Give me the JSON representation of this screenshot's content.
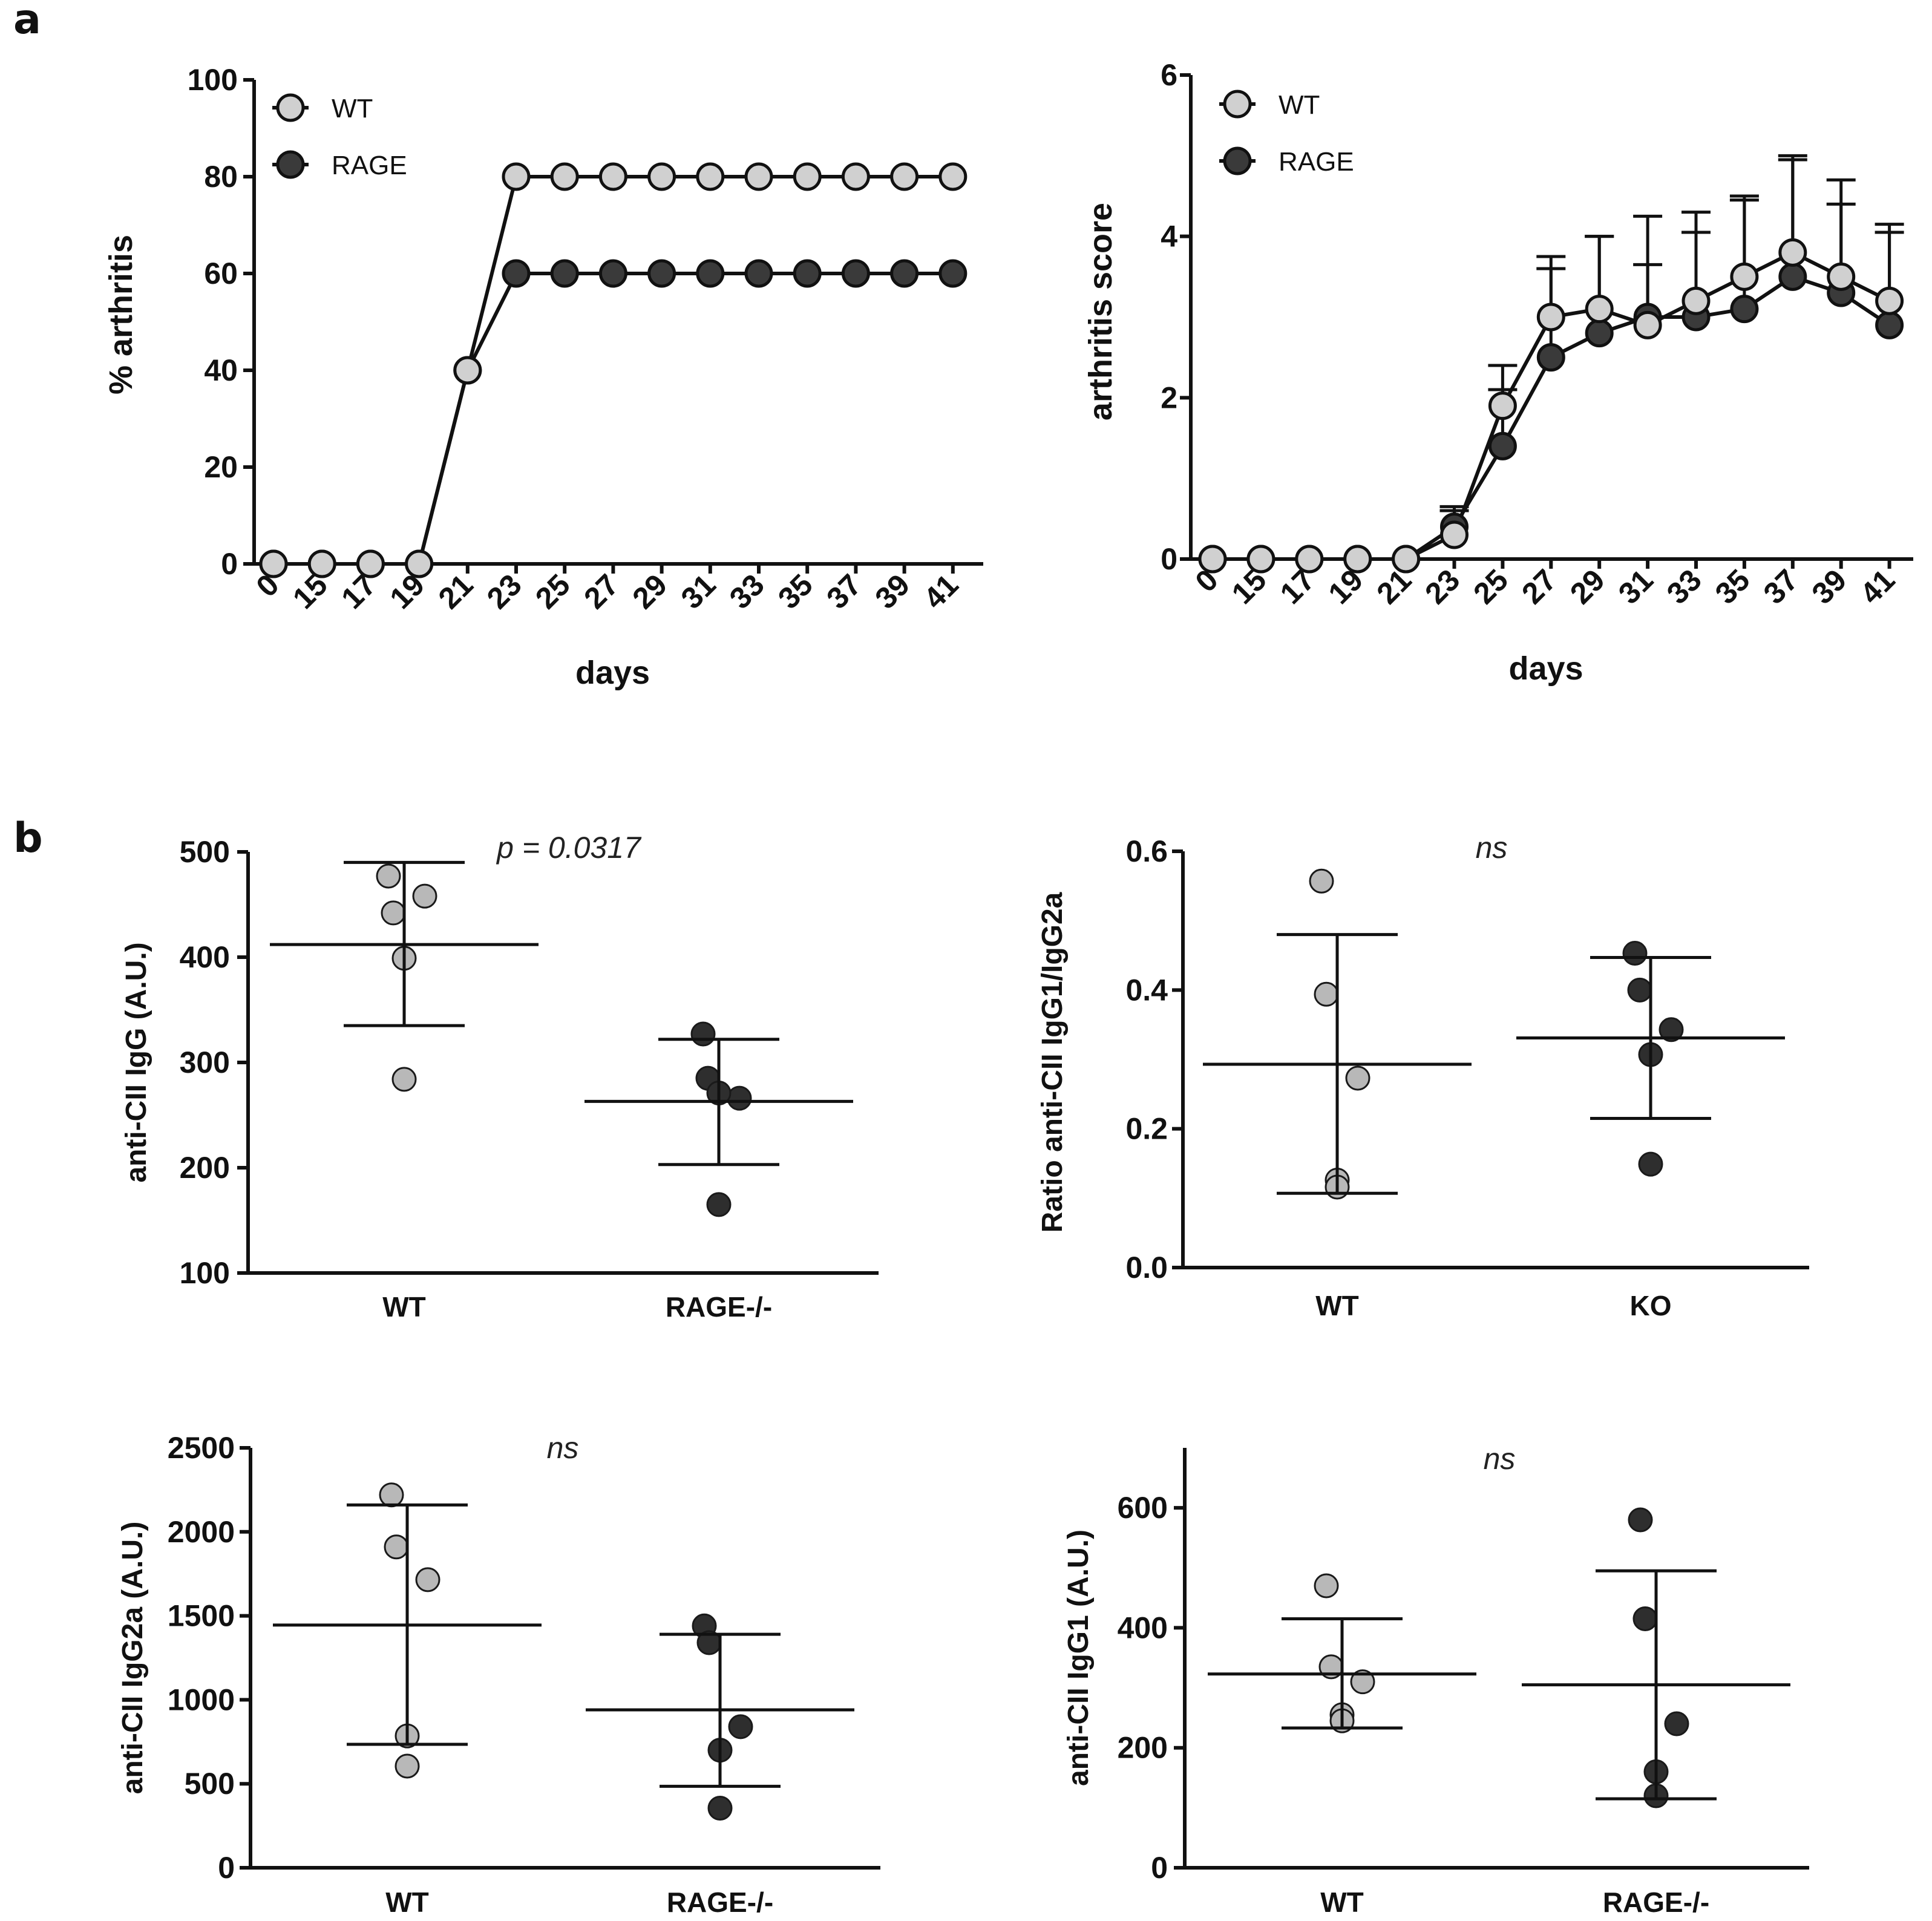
{
  "panels": {
    "a": "a",
    "b": "b"
  },
  "colors": {
    "wt": "#d0d0d0",
    "rage": "#3a3a3a",
    "line": "#111111"
  },
  "chart_data": [
    {
      "type": "line",
      "panel": "a",
      "xlabel": "days",
      "ylabel": "% arthritis",
      "x": [
        "0",
        "15",
        "17",
        "19",
        "21",
        "23",
        "25",
        "27",
        "29",
        "31",
        "33",
        "35",
        "37",
        "39",
        "41"
      ],
      "ylim": [
        0,
        100
      ],
      "yticks": [
        "0",
        "20",
        "40",
        "60",
        "80",
        "100"
      ],
      "legend": "top-left",
      "series": [
        {
          "name": "WT",
          "values": [
            0,
            0,
            0,
            0,
            40,
            80,
            80,
            80,
            80,
            80,
            80,
            80,
            80,
            80,
            80
          ]
        },
        {
          "name": "RAGE",
          "values": [
            0,
            0,
            0,
            0,
            40,
            60,
            60,
            60,
            60,
            60,
            60,
            60,
            60,
            60,
            60
          ]
        }
      ]
    },
    {
      "type": "line",
      "panel": "a",
      "xlabel": "days",
      "ylabel": "arthritis score",
      "x": [
        "0",
        "15",
        "17",
        "19",
        "21",
        "23",
        "25",
        "27",
        "29",
        "31",
        "33",
        "35",
        "37",
        "39",
        "41"
      ],
      "ylim": [
        0,
        6
      ],
      "yticks": [
        "0",
        "2",
        "4",
        "6"
      ],
      "legend": "top-left",
      "series": [
        {
          "name": "WT",
          "values": [
            0,
            0,
            0,
            0,
            0,
            0.3,
            1.9,
            3.0,
            3.1,
            2.9,
            3.2,
            3.5,
            3.8,
            3.5,
            3.2
          ],
          "error": [
            0,
            0,
            0,
            0,
            0,
            0.35,
            0.5,
            0.75,
            0.9,
            1.35,
            1.1,
            1.0,
            1.2,
            1.2,
            0.95
          ]
        },
        {
          "name": "RAGE",
          "values": [
            0,
            0,
            0,
            0,
            0,
            0.4,
            1.4,
            2.5,
            2.8,
            3.0,
            3.0,
            3.1,
            3.5,
            3.3,
            2.9
          ],
          "error": [
            0,
            0,
            0,
            0,
            0,
            0.2,
            0.7,
            1.1,
            1.2,
            0.65,
            1.05,
            1.35,
            1.45,
            1.1,
            1.15
          ]
        }
      ]
    },
    {
      "type": "scatter",
      "panel": "b",
      "ylabel": "anti-CII IgG (A.U.)",
      "categories": [
        "WT",
        "RAGE-/-"
      ],
      "ylim": [
        100,
        500
      ],
      "yticks": [
        "100",
        "200",
        "300",
        "400",
        "500"
      ],
      "annotation": "p = 0.0317",
      "groups": [
        {
          "points": [
            477,
            442,
            458,
            399,
            284
          ],
          "mean": 412,
          "sd_low": 335,
          "sd_high": 490
        },
        {
          "points": [
            327,
            285,
            266,
            271,
            165
          ],
          "mean": 263,
          "sd_low": 203,
          "sd_high": 322
        }
      ]
    },
    {
      "type": "scatter",
      "panel": "b",
      "ylabel": "Ratio anti-CII IgG1/IgG2a",
      "categories": [
        "WT",
        "KO"
      ],
      "ylim": [
        0,
        0.6
      ],
      "yticks": [
        "0.0",
        "0.2",
        "0.4",
        "0.6"
      ],
      "annotation": "ns",
      "groups": [
        {
          "points": [
            0.557,
            0.394,
            0.273,
            0.126,
            0.116
          ],
          "mean": 0.293,
          "sd_low": 0.107,
          "sd_high": 0.48
        },
        {
          "points": [
            0.453,
            0.4,
            0.343,
            0.307,
            0.149
          ],
          "mean": 0.331,
          "sd_low": 0.215,
          "sd_high": 0.447
        }
      ]
    },
    {
      "type": "scatter",
      "panel": "b",
      "ylabel": "anti-CII IgG2a (A.U.)",
      "categories": [
        "WT",
        "RAGE-/-"
      ],
      "ylim": [
        0,
        2500
      ],
      "yticks": [
        "0",
        "500",
        "1000",
        "1500",
        "2000",
        "2500"
      ],
      "annotation": "ns",
      "groups": [
        {
          "points": [
            2220,
            1910,
            1715,
            785,
            605
          ],
          "mean": 1445,
          "sd_low": 735,
          "sd_high": 2160
        },
        {
          "points": [
            1440,
            1340,
            840,
            700,
            355
          ],
          "mean": 940,
          "sd_low": 485,
          "sd_high": 1390
        }
      ]
    },
    {
      "type": "scatter",
      "panel": "b",
      "ylabel": "anti-CII IgG1 (A.U.)",
      "categories": [
        "WT",
        "RAGE-/-"
      ],
      "ylim": [
        0,
        700
      ],
      "yticks": [
        "0",
        "200",
        "400",
        "600"
      ],
      "annotation": "ns",
      "groups": [
        {
          "points": [
            470,
            335,
            310,
            255,
            245
          ],
          "mean": 323,
          "sd_low": 233,
          "sd_high": 415
        },
        {
          "points": [
            580,
            415,
            240,
            160,
            120
          ],
          "mean": 305,
          "sd_low": 115,
          "sd_high": 495
        }
      ]
    }
  ]
}
